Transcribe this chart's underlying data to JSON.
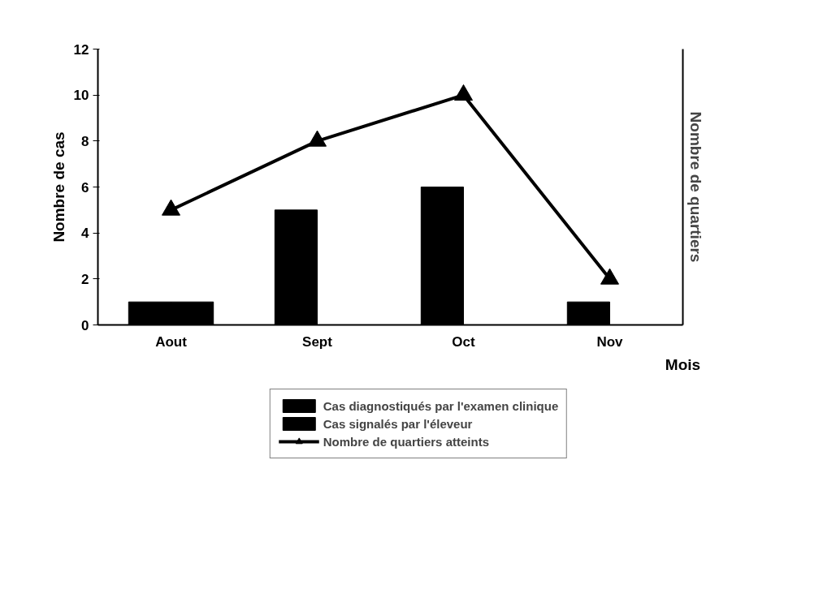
{
  "chart_data": {
    "type": "bar",
    "categories": [
      "Aout",
      "Sept",
      "Oct",
      "Nov"
    ],
    "xlabel": "Mois",
    "ylabel": "Nombre de cas",
    "y2label": "Nombre de quartiers",
    "ylim": [
      0,
      12
    ],
    "yticks": [
      0,
      2,
      4,
      6,
      8,
      10,
      12
    ],
    "grid": false,
    "legend": "bottom",
    "series": [
      {
        "name": "Cas diagnostiqués par l'examen clinique",
        "color": "#000000",
        "values": [
          1,
          5,
          6,
          1
        ]
      },
      {
        "name": "Cas signalés par l'éleveur",
        "color": "#000000",
        "values": [
          1,
          null,
          null,
          null
        ]
      },
      {
        "name": "Nombre de quartiers atteints",
        "type": "line",
        "color": "#000000",
        "marker": "triangle",
        "line_style": "solid",
        "values": [
          5,
          8,
          10,
          2
        ]
      }
    ]
  }
}
